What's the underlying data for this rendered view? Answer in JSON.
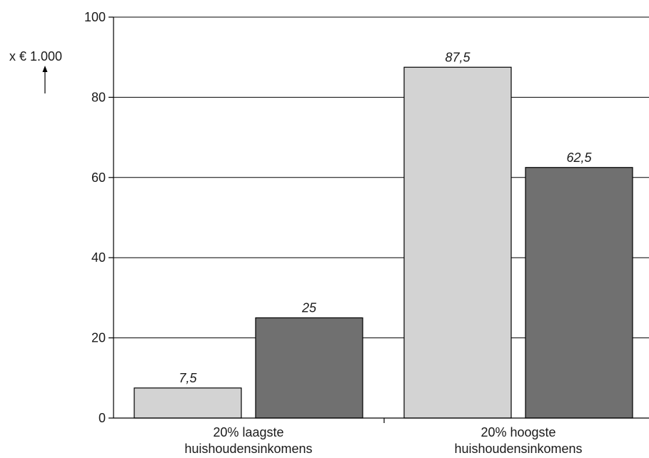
{
  "chart_data": {
    "type": "bar",
    "categories": [
      [
        "20% laagste",
        "huishoudensinkomens"
      ],
      [
        "20% hoogste",
        "huishoudensinkomens"
      ]
    ],
    "series": [
      {
        "values": [
          7.5,
          87.5
        ],
        "color": "#d3d3d3",
        "labels": [
          "7,5",
          "87,5"
        ]
      },
      {
        "values": [
          25,
          62.5
        ],
        "color": "#707070",
        "labels": [
          "25",
          "62,5"
        ]
      }
    ],
    "ylabel": "x € 1.000",
    "ylim": [
      0,
      100
    ],
    "yticks": [
      0,
      20,
      40,
      60,
      80,
      100
    ],
    "ytick_labels": [
      "0",
      "20",
      "40",
      "60",
      "80",
      "100"
    ],
    "grid": true,
    "legend": "none"
  }
}
